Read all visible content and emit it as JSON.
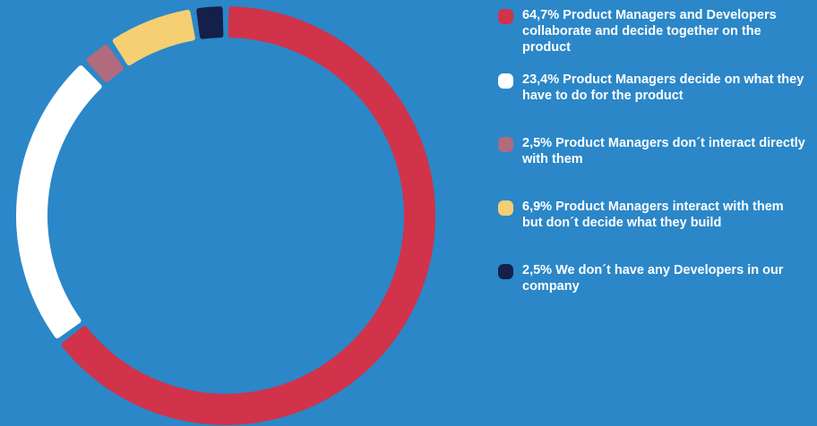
{
  "chart_data": {
    "type": "pie",
    "categories": [
      "Product Managers and Developers collaborate and decide together on the product",
      "Product Managers decide on what they have to do for the product",
      "Product Managers don´t interact directly with them",
      "Product Managers interact with them but don´t decide what they build",
      "We don´t have any Developers in our company"
    ],
    "values": [
      64.7,
      23.4,
      2.5,
      6.9,
      2.5
    ],
    "value_labels": [
      "64,7%",
      "23,4%",
      "2,5%",
      "6,9%",
      "2,5%"
    ],
    "colors": [
      "#d0334a",
      "#ffffff",
      "#b06b7d",
      "#f5cf72",
      "#14204a"
    ],
    "donut": true,
    "legend": "right"
  }
}
